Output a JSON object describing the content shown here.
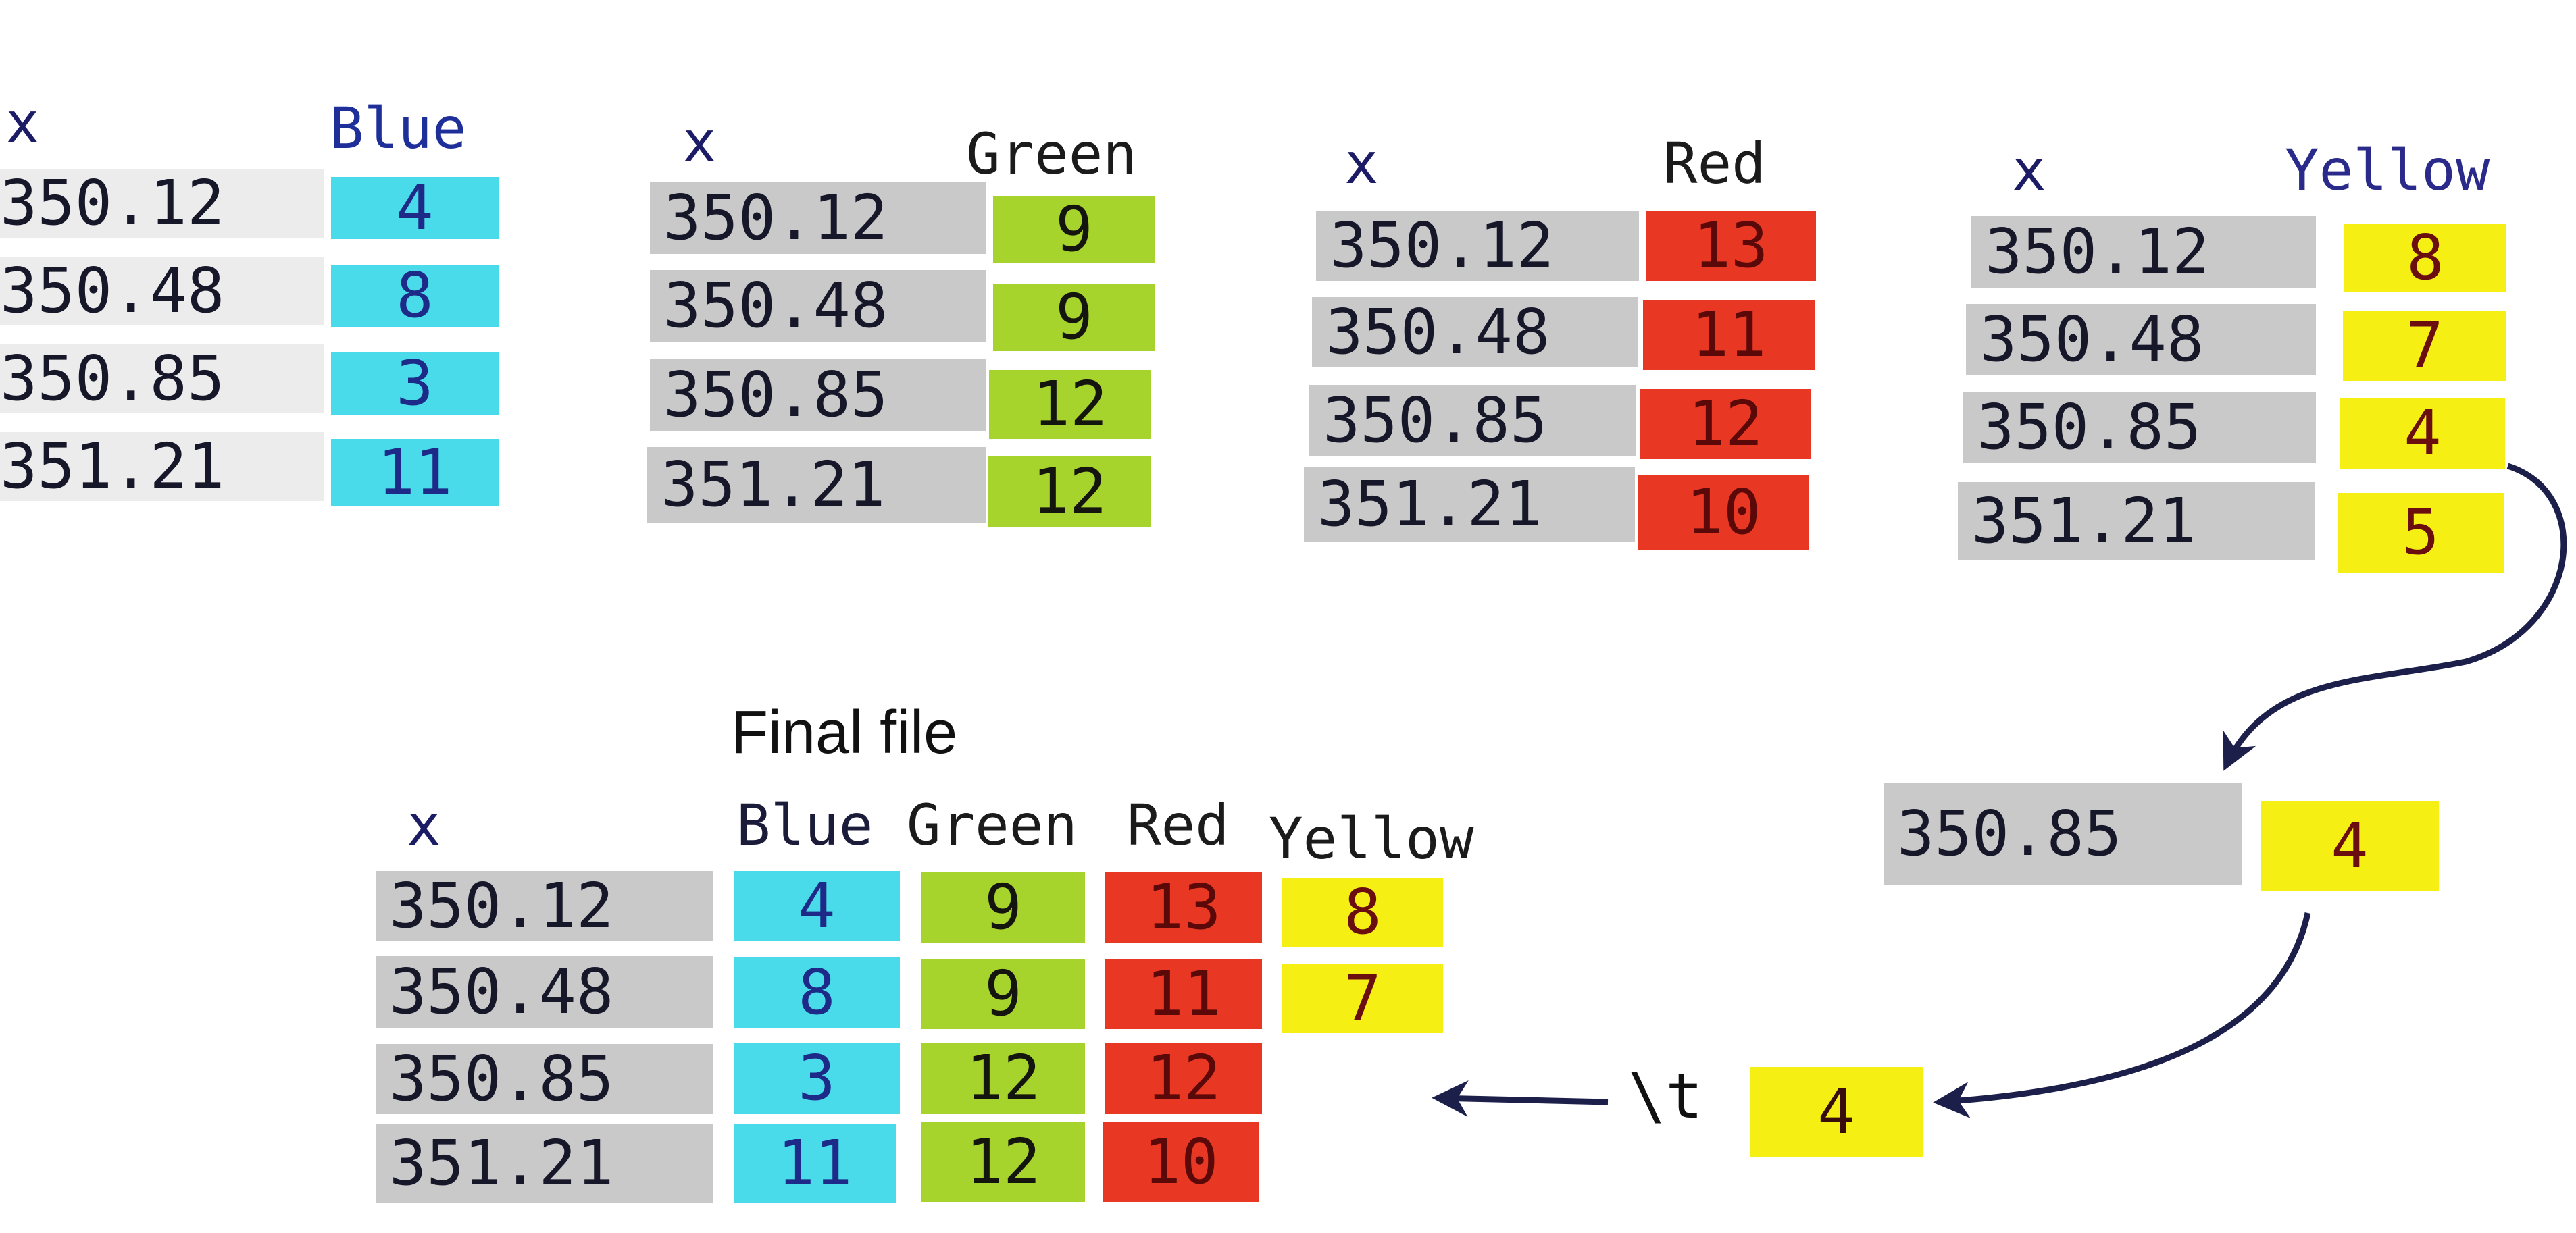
{
  "tables": {
    "blue": {
      "x_header": "x",
      "value_header": "Blue",
      "x": [
        "350.12",
        "350.48",
        "350.85",
        "351.21"
      ],
      "values": [
        "4",
        "8",
        "3",
        "11"
      ],
      "color": "#49dbea"
    },
    "green": {
      "x_header": "x",
      "value_header": "Green",
      "x": [
        "350.12",
        "350.48",
        "350.85",
        "351.21"
      ],
      "values": [
        "9",
        "9",
        "12",
        "12"
      ],
      "color": "#a6d32c"
    },
    "red": {
      "x_header": "x",
      "value_header": "Red",
      "x": [
        "350.12",
        "350.48",
        "350.85",
        "351.21"
      ],
      "values": [
        "13",
        "11",
        "12",
        "10"
      ],
      "color": "#e83824"
    },
    "yellow": {
      "x_header": "x",
      "value_header": "Yellow",
      "x": [
        "350.12",
        "350.48",
        "350.85",
        "351.21"
      ],
      "values": [
        "8",
        "7",
        "4",
        "5"
      ],
      "color": "#f6ef14"
    }
  },
  "extracted": {
    "x": "350.85",
    "value": "4"
  },
  "tab_step": {
    "label": "\\t",
    "value": "4"
  },
  "final_file": {
    "title": "Final file",
    "headers": [
      "x",
      "Blue",
      "Green",
      "Red",
      "Yellow"
    ],
    "rows": [
      [
        "350.12",
        "4",
        "9",
        "13",
        "8"
      ],
      [
        "350.48",
        "8",
        "9",
        "11",
        "7"
      ],
      [
        "350.85",
        "3",
        "12",
        "12",
        ""
      ],
      [
        "351.21",
        "11",
        "12",
        "10",
        ""
      ]
    ]
  },
  "colors": {
    "arrow": "#1b1f4a"
  }
}
